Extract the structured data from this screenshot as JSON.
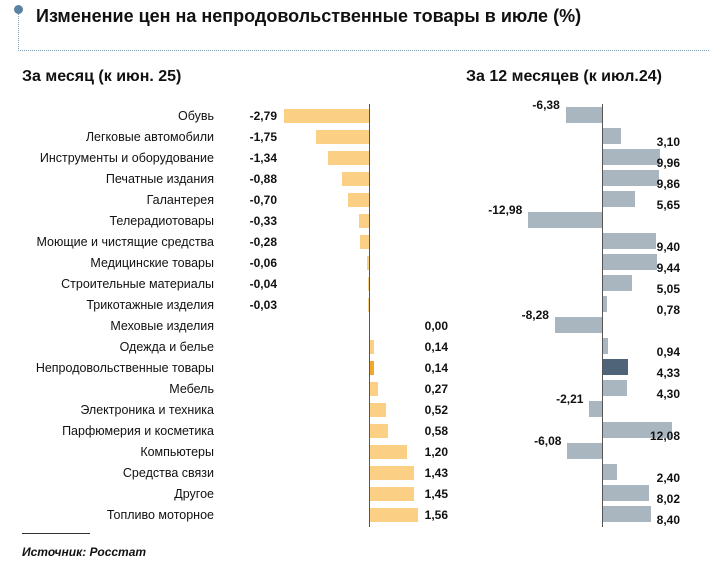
{
  "title": "Изменение цен на непродовольственные товары в июле (%)",
  "source": "Источник: Росстат",
  "colors": {
    "monthly_bar": "#fbcf84",
    "monthly_highlight": "#f0a82f",
    "annual_bar": "#a9b5bf",
    "annual_highlight": "#4f6479",
    "axis": "#555555"
  },
  "chart_data": [
    {
      "type": "bar",
      "orientation": "horizontal",
      "subtitle": "За месяц (к июн. 25)",
      "categories": [
        "Обувь",
        "Легковые автомобили",
        "Инструменты и оборудование",
        "Печатные издания",
        "Галантерея",
        "Телерадиотовары",
        "Моющие и чистящие средства",
        "Медицинские товары",
        "Строительные материалы",
        "Трикотажные изделия",
        "Меховые изделия",
        "Одежда и белье",
        "Непродовольственные товары",
        "Мебель",
        "Электроника и техника",
        "Парфюмерия и косметика",
        "Компьютеры",
        "Средства связи",
        "Другое",
        "Топливо моторное"
      ],
      "values": [
        -2.79,
        -1.75,
        -1.34,
        -0.88,
        -0.7,
        -0.33,
        -0.28,
        -0.06,
        -0.04,
        -0.03,
        0.0,
        0.14,
        0.14,
        0.27,
        0.52,
        0.58,
        1.2,
        1.43,
        1.45,
        1.56
      ],
      "labels": [
        "-2,79",
        "-1,75",
        "-1,34",
        "-0,88",
        "-0,70",
        "-0,33",
        "-0,28",
        "-0,06",
        "-0,04",
        "-0,03",
        "0,00",
        "0,14",
        "0,14",
        "0,27",
        "0,52",
        "0,58",
        "1,20",
        "1,43",
        "1,45",
        "1,56"
      ],
      "highlight_category": "Непродовольственные товары"
    },
    {
      "type": "bar",
      "orientation": "horizontal",
      "subtitle": "За 12 месяцев (к июл.24)",
      "categories": [
        "Обувь",
        "Легковые автомобили",
        "Инструменты и оборудование",
        "Печатные издания",
        "Галантерея",
        "Телерадиотовары",
        "Моющие и чистящие средства",
        "Медицинские товары",
        "Строительные материалы",
        "Трикотажные изделия",
        "Меховые изделия",
        "Одежда и белье",
        "Непродовольственные товары",
        "Мебель",
        "Электроника и техника",
        "Парфюмерия и косметика",
        "Компьютеры",
        "Средства связи",
        "Другое",
        "Топливо моторное"
      ],
      "values": [
        -6.38,
        3.1,
        9.96,
        9.86,
        5.65,
        -12.98,
        9.4,
        9.44,
        5.05,
        0.78,
        -8.28,
        0.94,
        4.33,
        4.3,
        -2.21,
        12.08,
        -6.08,
        2.4,
        8.02,
        8.4
      ],
      "labels": [
        "-6,38",
        "3,10",
        "9,96",
        "9,86",
        "5,65",
        "-12,98",
        "9,40",
        "9,44",
        "5,05",
        "0,78",
        "-8,28",
        "0,94",
        "4,33",
        "4,30",
        "-2,21",
        "12,08",
        "-6,08",
        "2,40",
        "8,02",
        "8,40"
      ],
      "highlight_category": "Непродовольственные товары"
    }
  ]
}
